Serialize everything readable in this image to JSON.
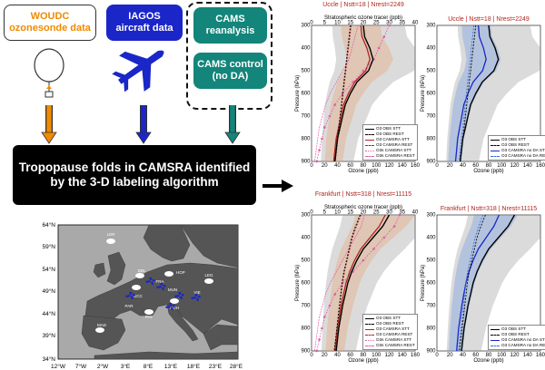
{
  "boxes": {
    "woudc": [
      "WOUDC",
      "ozonesonde data"
    ],
    "iagos": [
      "IAGOS",
      "aircraft data"
    ],
    "cams_reanalysis": [
      "CAMS",
      "reanalysis"
    ],
    "cams_control": [
      "CAMS control",
      "(no DA)"
    ]
  },
  "banner": [
    "Tropopause folds in CAMSRA identified",
    "by the 3-D labeling algorithm"
  ],
  "map": {
    "lat_labels": [
      "64°N",
      "59°N",
      "54°N",
      "49°N",
      "44°N",
      "39°N",
      "34°N"
    ],
    "lon_labels": [
      "12°W",
      "7°W",
      "2°W",
      "3°E",
      "8°E",
      "13°E",
      "18°E",
      "23°E",
      "28°E"
    ],
    "sites": [
      "LER",
      "DBL",
      "UCC",
      "FRA",
      "HOP",
      "MUN",
      "VIE",
      "PAR",
      "PAY",
      "HOH",
      "MAD",
      "LEG"
    ],
    "colors": {
      "site": "#ffffff",
      "aircraft": "#1a26c8",
      "land": "#555555",
      "sea": "#a9a9a9"
    }
  },
  "panels": [
    {
      "title": "Uccle | Nstt=18 | Nrest=2249",
      "top_axis": "Stratospheric ozone tracer (ppb)",
      "top_ticks": [
        "0",
        "5",
        "10",
        "15",
        "20",
        "25",
        "30",
        "35",
        "40"
      ],
      "legend": [
        "O3 OBS STT",
        "O3 OBS REST",
        "O3 CAMSRA STT",
        "O3 CAMSRA REST",
        "O3s CAMSRA STT",
        "O3s CAMSRA REST"
      ]
    },
    {
      "title": "Uccle | Nstt=18 | Nrest=2249",
      "top_axis": "",
      "top_ticks": [],
      "legend": [
        "O3 OBS STT",
        "O3 OBS REST",
        "O3 CAMSRA no DA STT",
        "O3 CAMSRA no DA REST"
      ]
    },
    {
      "title": "Frankfurt | Nstt=318 | Nrest=11115",
      "top_axis": "Stratospheric ozone tracer (ppb)",
      "top_ticks": [
        "0",
        "5",
        "10",
        "15",
        "20",
        "25",
        "30",
        "35",
        "40"
      ],
      "legend": [
        "O3 OBS STT",
        "O3 OBS REST",
        "O3 CAMSRA STT",
        "O3 CAMSRA REST",
        "O3s CAMSRA STT",
        "O3s CAMSRA REST"
      ]
    },
    {
      "title": "Frankfurt | Nstt=318 | Nrest=11115",
      "top_axis": "",
      "top_ticks": [],
      "legend": [
        "O3 OBS STT",
        "O3 OBS REST",
        "O3 CAMSRA no DA STT",
        "O3 CAMSRA no DA REST"
      ]
    }
  ],
  "axes": {
    "xlabel": "Ozone (ppb)",
    "ylabel": "Pressure (hPa)",
    "x_ticks": [
      "0",
      "20",
      "40",
      "60",
      "80",
      "100",
      "120",
      "140",
      "160"
    ],
    "y_ticks": [
      "300",
      "400",
      "500",
      "600",
      "700",
      "800",
      "900"
    ]
  },
  "colors": {
    "orange": "#f08a00",
    "blue": "#1a26c8",
    "teal": "#13857a",
    "red": "#b0251e",
    "pink": "#e05ca8",
    "lightblue": "#3a6fd8"
  }
}
